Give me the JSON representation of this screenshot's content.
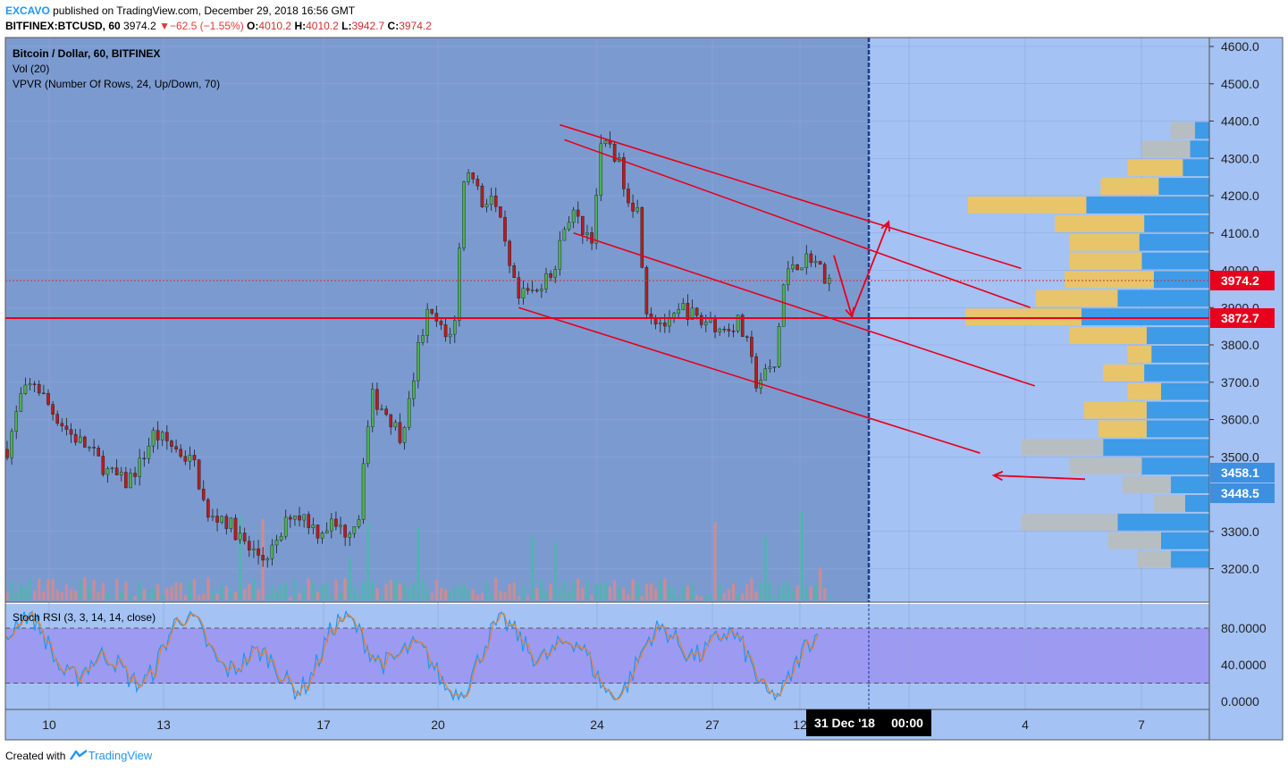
{
  "header": {
    "author": "EXCAVO",
    "published_text": " published on TradingView.com, December 29, 2018 16:56 GMT",
    "symbol": "BITFINEX:BTCUSD, 60",
    "last": "3974.2",
    "change": "−62.5 (−1.55%)",
    "o_label": "O:",
    "o": "4010.2",
    "h_label": "H:",
    "h": "4010.2",
    "l_label": "L:",
    "l": "3942.7",
    "c_label": "C:",
    "c": "3974.2"
  },
  "legend": {
    "line1": "Bitcoin / Dollar, 60, BITFINEX",
    "line2": "Vol (20)",
    "line3": "VPVR (Number Of Rows, 24, Up/Down, 70)"
  },
  "footer": {
    "created_with": "Created with",
    "brand": "TradingView"
  },
  "colors": {
    "history_bg": "#7b9bd0",
    "future_bg": "#a4c2f4",
    "rsi_bg": "#a4c2f4",
    "rsi_band": "#9c9bf1",
    "up_candle": "#4caf50",
    "down_candle": "#b71c1c",
    "channel": "#e8001c",
    "vp_up": "#3d9be8",
    "vp_down": "#e8c46b",
    "vp_neutral": "#b7bec2"
  },
  "chart_data": {
    "type": "candlestick",
    "y_ticks": [
      "4600.0",
      "4500.0",
      "4400.0",
      "4300.0",
      "4200.0",
      "4100.0",
      "4000.0",
      "3900.0",
      "3800.0",
      "3700.0",
      "3600.0",
      "3500.0",
      "3300.0",
      "3200.0"
    ],
    "x_ticks": [
      "10",
      "13",
      "17",
      "20",
      "24",
      "27",
      "12",
      "4",
      "7"
    ],
    "current_date_label": "31 Dec '18",
    "current_time_label": "00:00",
    "price_labels": [
      {
        "value": "3974.2",
        "kind": "last"
      },
      {
        "value": "3872.7",
        "kind": "horizontal"
      },
      {
        "value": "3458.1",
        "kind": "alert"
      },
      {
        "value": "3448.5",
        "kind": "alert"
      }
    ],
    "horizontal_line": 3872.7,
    "close_path": [
      [
        0,
        3520
      ],
      [
        3,
        3660
      ],
      [
        6,
        3700
      ],
      [
        10,
        3620
      ],
      [
        14,
        3560
      ],
      [
        18,
        3520
      ],
      [
        22,
        3460
      ],
      [
        26,
        3430
      ],
      [
        29,
        3480
      ],
      [
        32,
        3560
      ],
      [
        35,
        3540
      ],
      [
        38,
        3510
      ],
      [
        41,
        3480
      ],
      [
        44,
        3330
      ],
      [
        47,
        3340
      ],
      [
        50,
        3300
      ],
      [
        53,
        3250
      ],
      [
        56,
        3230
      ],
      [
        59,
        3260
      ],
      [
        62,
        3350
      ],
      [
        65,
        3340
      ],
      [
        68,
        3300
      ],
      [
        71,
        3320
      ],
      [
        74,
        3300
      ],
      [
        77,
        3340
      ],
      [
        78,
        3500
      ],
      [
        80,
        3660
      ],
      [
        83,
        3620
      ],
      [
        86,
        3560
      ],
      [
        88,
        3640
      ],
      [
        90,
        3790
      ],
      [
        92,
        3880
      ],
      [
        94,
        3860
      ],
      [
        96,
        3820
      ],
      [
        98,
        3860
      ],
      [
        100,
        4250
      ],
      [
        102,
        4260
      ],
      [
        104,
        4180
      ],
      [
        106,
        4200
      ],
      [
        108,
        4120
      ],
      [
        110,
        4000
      ],
      [
        112,
        3920
      ],
      [
        114,
        3940
      ],
      [
        116,
        3940
      ],
      [
        118,
        4000
      ],
      [
        120,
        4000
      ],
      [
        122,
        4130
      ],
      [
        124,
        4150
      ],
      [
        126,
        4110
      ],
      [
        128,
        4090
      ],
      [
        130,
        4320
      ],
      [
        132,
        4340
      ],
      [
        134,
        4280
      ],
      [
        136,
        4200
      ],
      [
        138,
        4160
      ],
      [
        140,
        3900
      ],
      [
        142,
        3870
      ],
      [
        145,
        3850
      ],
      [
        148,
        3900
      ],
      [
        150,
        3880
      ],
      [
        152,
        3860
      ],
      [
        154,
        3870
      ],
      [
        156,
        3840
      ],
      [
        158,
        3850
      ],
      [
        160,
        3860
      ],
      [
        162,
        3800
      ],
      [
        164,
        3700
      ],
      [
        166,
        3720
      ],
      [
        168,
        3740
      ],
      [
        170,
        3960
      ],
      [
        172,
        4020
      ],
      [
        174,
        4020
      ],
      [
        176,
        4040
      ],
      [
        178,
        4000
      ],
      [
        180,
        3974
      ]
    ],
    "channel_lines": [
      {
        "from": [
          121,
          4390
        ],
        "to": [
          222,
          4005
        ]
      },
      {
        "from": [
          122,
          4350
        ],
        "to": [
          224,
          3900
        ]
      },
      {
        "from": [
          124,
          4100
        ],
        "to": [
          225,
          3690
        ]
      },
      {
        "from": [
          112,
          3900
        ],
        "to": [
          213,
          3510
        ]
      }
    ],
    "arrows": [
      {
        "from": [
          181,
          4040
        ],
        "to": [
          185,
          3875
        ]
      },
      {
        "from": [
          185,
          3880
        ],
        "to": [
          193,
          4130
        ]
      },
      {
        "from": [
          236,
          3440
        ],
        "to": [
          216,
          3450
        ]
      }
    ],
    "volume_profile": [
      {
        "price": 4375,
        "up": 0.06,
        "down": 0.0,
        "neutral": 0.1
      },
      {
        "price": 4325,
        "up": 0.08,
        "down": 0.0,
        "neutral": 0.2
      },
      {
        "price": 4275,
        "up": 0.11,
        "down": 0.23,
        "neutral": 0.0
      },
      {
        "price": 4225,
        "up": 0.21,
        "down": 0.24,
        "neutral": 0.0
      },
      {
        "price": 4175,
        "up": 0.51,
        "down": 0.49,
        "neutral": 0.0
      },
      {
        "price": 4125,
        "up": 0.27,
        "down": 0.37,
        "neutral": 0.0
      },
      {
        "price": 4075,
        "up": 0.29,
        "down": 0.29,
        "neutral": 0.0
      },
      {
        "price": 4025,
        "up": 0.28,
        "down": 0.3,
        "neutral": 0.0
      },
      {
        "price": 3975,
        "up": 0.23,
        "down": 0.37,
        "neutral": 0.0
      },
      {
        "price": 3925,
        "up": 0.38,
        "down": 0.34,
        "neutral": 0.0
      },
      {
        "price": 3875,
        "up": 0.53,
        "down": 0.48,
        "neutral": 0.0
      },
      {
        "price": 3825,
        "up": 0.26,
        "down": 0.32,
        "neutral": 0.0
      },
      {
        "price": 3775,
        "up": 0.24,
        "down": 0.1,
        "neutral": 0.0
      },
      {
        "price": 3725,
        "up": 0.27,
        "down": 0.17,
        "neutral": 0.0
      },
      {
        "price": 3675,
        "up": 0.2,
        "down": 0.14,
        "neutral": 0.0
      },
      {
        "price": 3625,
        "up": 0.26,
        "down": 0.26,
        "neutral": 0.0
      },
      {
        "price": 3575,
        "up": 0.26,
        "down": 0.2,
        "neutral": 0.0
      },
      {
        "price": 3525,
        "up": 0.44,
        "down": 0.0,
        "neutral": 0.34
      },
      {
        "price": 3475,
        "up": 0.28,
        "down": 0.0,
        "neutral": 0.3
      },
      {
        "price": 3425,
        "up": 0.16,
        "down": 0.0,
        "neutral": 0.2
      },
      {
        "price": 3375,
        "up": 0.1,
        "down": 0.0,
        "neutral": 0.13
      },
      {
        "price": 3325,
        "up": 0.38,
        "down": 0.0,
        "neutral": 0.4
      },
      {
        "price": 3275,
        "up": 0.2,
        "down": 0.0,
        "neutral": 0.22
      },
      {
        "price": 3225,
        "up": 0.16,
        "down": 0.0,
        "neutral": 0.14
      }
    ],
    "rsi": {
      "title": "Stoch RSI (3, 3, 14, 14, close)",
      "y_ticks": [
        "80.0000",
        "40.0000",
        "0.0000"
      ],
      "upper_band": 80,
      "lower_band": 20
    }
  }
}
